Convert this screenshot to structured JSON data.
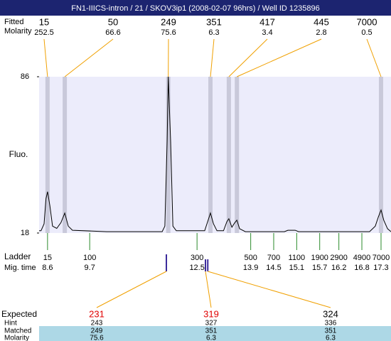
{
  "chart_data": {
    "type": "line",
    "title": "FN1-IIICS-intron / 21 / SKOV3ip1 (2008-02-07 96hrs) / Well ID 1235896",
    "y_label": "Fluo.",
    "ylim": [
      18,
      86
    ],
    "yticks": [
      18,
      86
    ],
    "xlim": [
      8.38,
      17.56
    ],
    "color": "#000000",
    "x": [
      8.38,
      8.43,
      8.51,
      8.56,
      8.6,
      8.66,
      8.73,
      8.84,
      8.95,
      9.05,
      9.14,
      9.25,
      10.14,
      11.59,
      11.66,
      11.72,
      11.75,
      11.81,
      11.87,
      11.96,
      12.7,
      12.79,
      12.85,
      12.93,
      13.02,
      13.19,
      13.28,
      13.33,
      13.41,
      13.48,
      13.54,
      13.61,
      13.76,
      14.78,
      14.87,
      15.06,
      15.15,
      17.0,
      17.15,
      17.23,
      17.3,
      17.37,
      17.47,
      17.56
    ],
    "values": [
      19,
      19,
      22,
      33,
      36,
      30,
      21,
      20,
      22.5,
      26.7,
      21,
      19.2,
      18.6,
      18.6,
      21,
      58,
      86,
      58,
      21,
      19,
      19,
      23.6,
      26.7,
      22,
      19,
      19,
      23,
      24.2,
      20.5,
      22.4,
      23.6,
      19.9,
      18.6,
      18.6,
      19.2,
      19.2,
      18.6,
      18.6,
      21,
      25,
      28,
      23.6,
      19.9,
      18.6
    ],
    "peak_table": {
      "size_label": "Fitted",
      "molarity_label": "Molarity",
      "sizes": [
        15,
        50,
        249,
        351,
        417,
        445,
        7000
      ],
      "molarities": [
        252.5,
        66.6,
        75.6,
        6.3,
        3.4,
        2.8,
        0.5
      ],
      "times": [
        8.6,
        9.05,
        11.75,
        12.85,
        13.33,
        13.54,
        17.3
      ]
    },
    "ladder": {
      "label": "Ladder",
      "time_label": "Mig. time",
      "sizes": [
        15,
        100,
        300,
        500,
        700,
        1100,
        1900,
        2900,
        4900,
        7000
      ],
      "times": [
        8.6,
        9.7,
        12.5,
        13.9,
        14.5,
        15.1,
        15.7,
        16.2,
        16.8,
        17.3
      ]
    },
    "expected": {
      "row_labels": [
        "Expected",
        "Hint",
        "Matched",
        "Molarity"
      ],
      "columns": [
        {
          "expected": 231,
          "hint": 243,
          "matched": 249,
          "molarity": 75.6,
          "time": 11.7,
          "color": "#e00000"
        },
        {
          "expected": 319,
          "hint": 327,
          "matched": 351,
          "molarity": 6.3,
          "time": 12.72,
          "color": "#e00000"
        },
        {
          "expected": 324,
          "hint": 336,
          "matched": 351,
          "molarity": 6.3,
          "time": 12.78,
          "color": "#000000"
        }
      ]
    }
  }
}
